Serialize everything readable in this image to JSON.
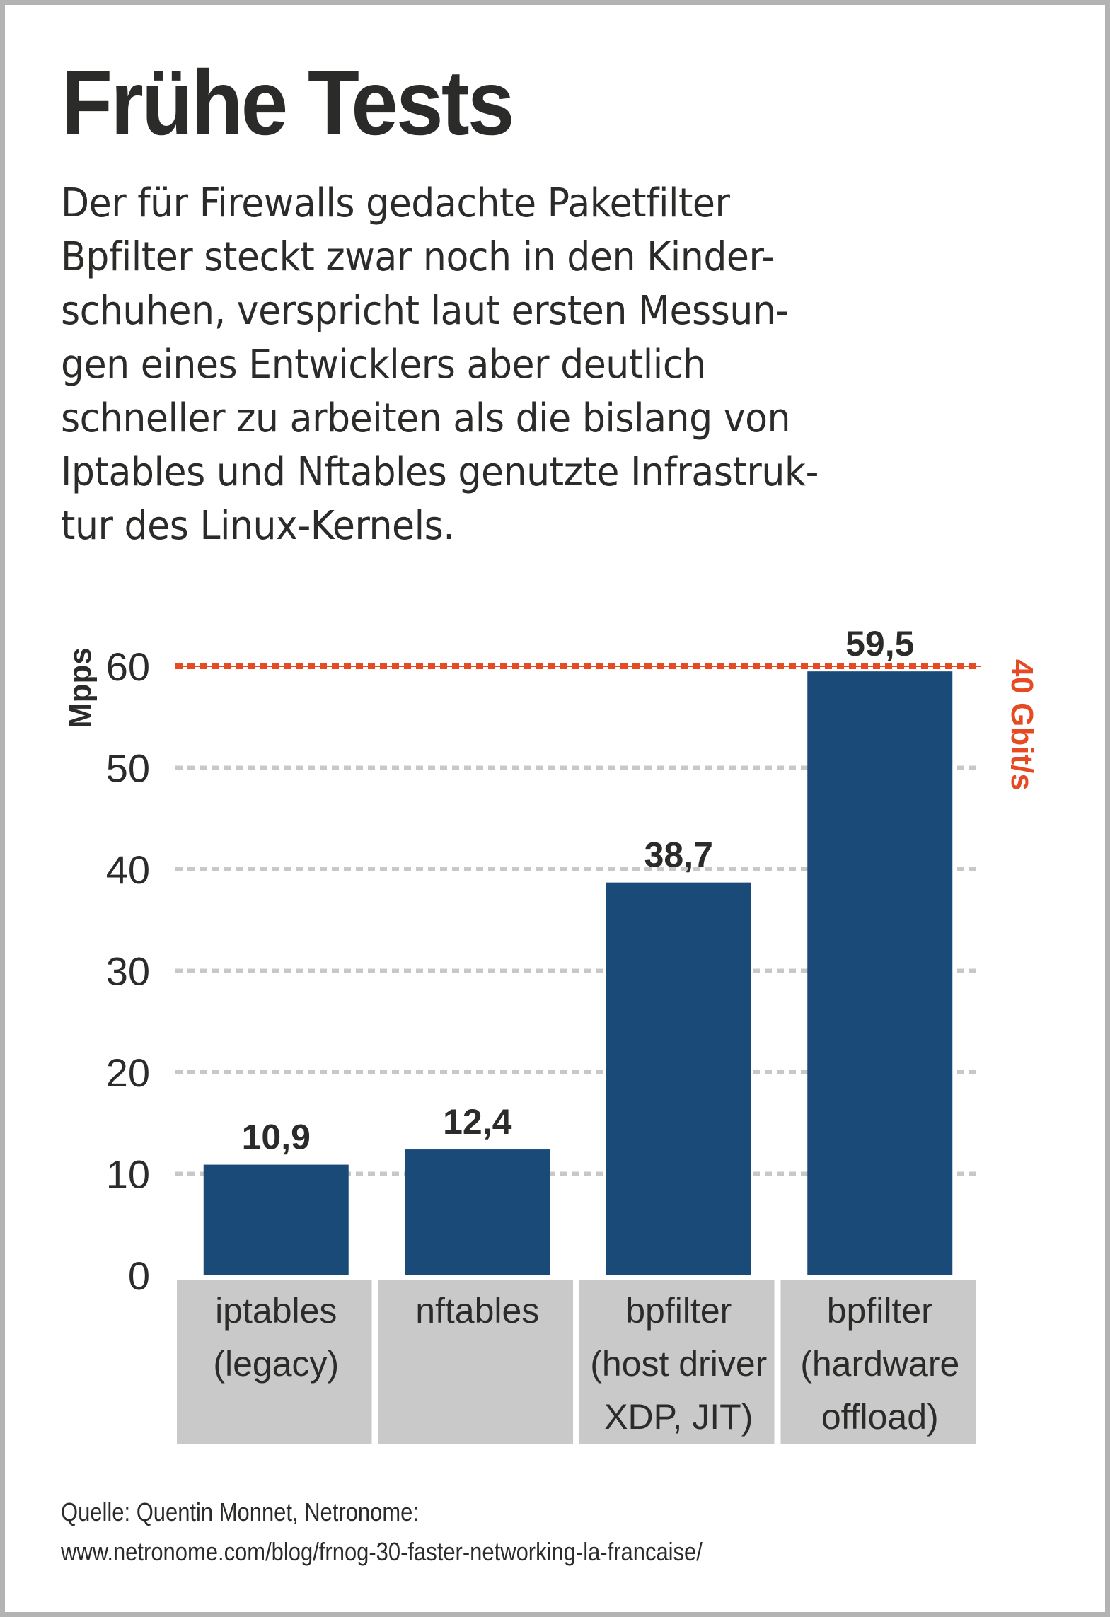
{
  "title": "Frühe Tests",
  "intro_lines": [
    "Der für Firewalls gedachte Paketfilter",
    "Bpfilter steckt zwar noch in den Kinder-",
    "schuhen, verspricht laut ersten Messun-",
    "gen eines Entwicklers aber deutlich",
    "schneller zu arbeiten als die bislang von",
    "Iptables und Nftables genutzte Infrastruk-",
    "tur des Linux-Kernels."
  ],
  "colors": {
    "bar": "#1a4a78",
    "reference_line": "#e64a22",
    "grid": "#c8c8c8",
    "category_box": "#c8c9c8",
    "text": "#2b2b2a",
    "frame": "#b3b3b3"
  },
  "chart_data": {
    "type": "bar",
    "title": "",
    "xlabel": "",
    "ylabel": "Mpps",
    "ylim": [
      0,
      60
    ],
    "yticks": [
      0,
      10,
      20,
      30,
      40,
      50,
      60
    ],
    "ytick_labels": [
      "0",
      "10",
      "20",
      "30",
      "40",
      "50",
      "60"
    ],
    "grid": true,
    "categories": [
      [
        "iptables",
        "(legacy)"
      ],
      [
        "nftables"
      ],
      [
        "bpfilter",
        "(host driver",
        "XDP, JIT)"
      ],
      [
        "bpfilter",
        "(hardware",
        "offload)"
      ]
    ],
    "values": [
      10.9,
      12.4,
      38.7,
      59.5
    ],
    "value_labels": [
      "10,9",
      "12,4",
      "38,7",
      "59,5"
    ],
    "reference_line": {
      "value": 60,
      "label": "40 Gbit/s"
    }
  },
  "source_lines": [
    "Quelle: Quentin Monnet, Netronome:",
    "www.netronome.com/blog/frnog-30-faster-networking-la-francaise/"
  ]
}
